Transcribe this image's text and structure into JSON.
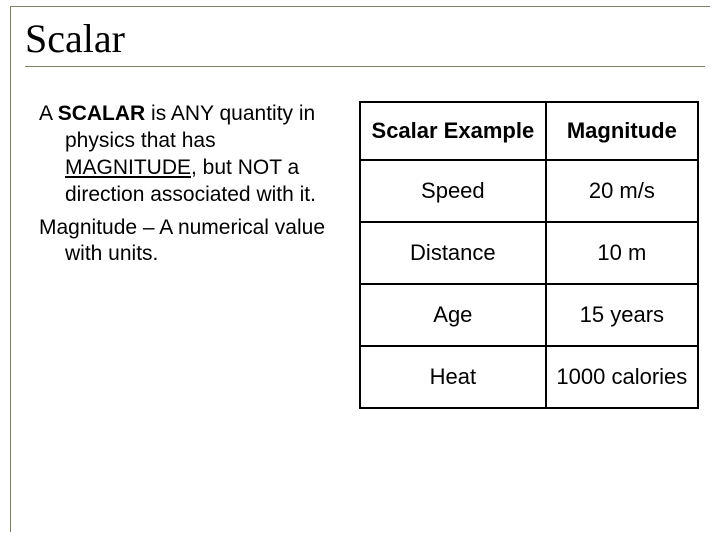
{
  "title": "Scalar",
  "definition": {
    "line1_prefix": "A ",
    "line1_bold": "SCALAR",
    "line1_rest": " is ANY quantity in physics that has ",
    "line1_underlined": "MAGNITUDE",
    "line1_tail": ", but NOT a direction associated with it.",
    "line2": "Magnitude – A numerical value with units."
  },
  "table": {
    "type": "table",
    "border_color": "#000000",
    "header_fontsize": 22,
    "cell_fontsize": 22,
    "background_color": "#ffffff",
    "columns": [
      "Scalar Example",
      "Magnitude"
    ],
    "rows": [
      [
        "Speed",
        "20 m/s"
      ],
      [
        "Distance",
        "10 m"
      ],
      [
        "Age",
        "15 years"
      ],
      [
        "Heat",
        "1000 calories"
      ]
    ]
  },
  "colors": {
    "frame_border": "#808066",
    "text": "#000000",
    "background": "#ffffff"
  }
}
